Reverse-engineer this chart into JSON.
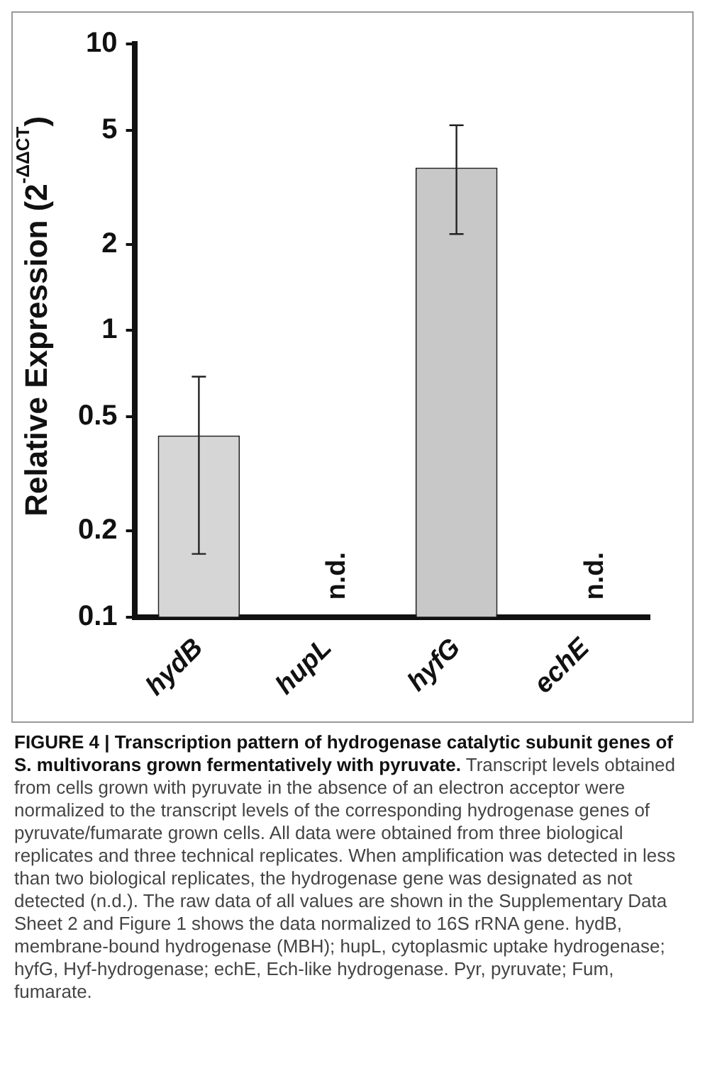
{
  "chart_data": {
    "type": "bar",
    "title": "FIGURE 4 | Transcription pattern of hydrogenase catalytic subunit genes of S. multivorans grown fermentatively with pyruvate.",
    "ylabel": "Relative Expression (2$^{-ΔΔCT}$)",
    "categories": [
      "hydB",
      "hupL",
      "hyfG",
      "echE"
    ],
    "values": [
      0.43,
      null,
      3.7,
      null
    ],
    "errors": [
      [
        0.166,
        0.69
      ],
      null,
      [
        2.17,
        5.2
      ],
      null
    ],
    "colors": [
      "#d6d6d6",
      "#d6d6d6",
      "#c8c8c8",
      "#c8c8c8"
    ],
    "log": "y",
    "ylim": [
      0.1,
      10
    ],
    "yticks": [
      0.1,
      0.2,
      0.5,
      1,
      2,
      5,
      10
    ],
    "grid": false,
    "legend": false,
    "annotations": [
      "n.d.",
      "n.d.",
      "Transcript levels obtained from cells grown with pyruvate in the absence of an electron acceptor were normalized to the transcript levels of the corresponding hydrogenase genes of pyruvate/fumarate grown cells. All data were obtained from three biological replicates and three technical replicates. When amplification was detected in less than two biological replicates, the hydrogenase gene was designated as not detected (n.d.). The raw data of all values are shown in the Supplementary Data Sheet 2 and Figure 1 shows the data normalized to 16S rRNA gene. hydB, membrane-bound hydrogenase (MBH); hupL, cytoplasmic uptake hydrogenase; hyfG, Hyf-hydrogenase; echE, Ech-like hydrogenase. Pyr, pyruvate; Fum, fumarate."
    ]
  }
}
